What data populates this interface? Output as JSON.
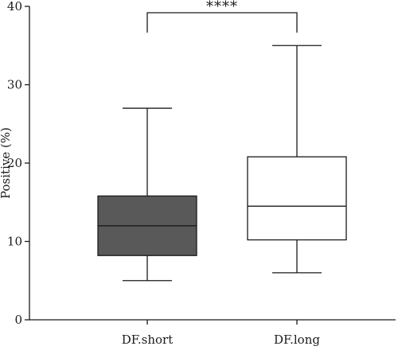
{
  "chart_data": {
    "type": "boxplot",
    "title": "",
    "xlabel": "",
    "ylabel": "Positive (%)",
    "ylim": [
      0,
      40
    ],
    "yticks": [
      0,
      10,
      20,
      30,
      40
    ],
    "grid": false,
    "categories": [
      "DF.short",
      "DF.long"
    ],
    "boxes": [
      {
        "category": "DF.short",
        "min": 5,
        "q1": 8.2,
        "median": 12,
        "q3": 15.8,
        "max": 27,
        "fill": "#595959"
      },
      {
        "category": "DF.long",
        "min": 6,
        "q1": 10.2,
        "median": 14.5,
        "q3": 20.8,
        "max": 35,
        "fill": "#ffffff"
      }
    ],
    "annotation": {
      "text": "****",
      "between": [
        "DF.short",
        "DF.long"
      ]
    }
  }
}
